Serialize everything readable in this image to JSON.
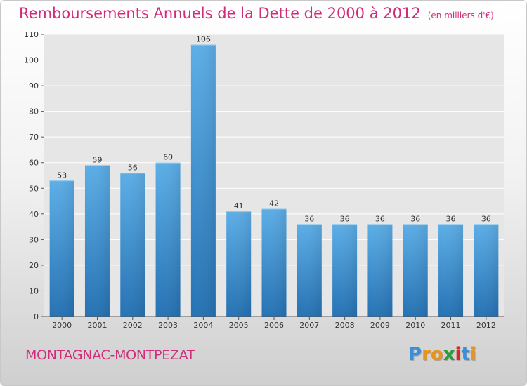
{
  "chart_data": {
    "type": "bar",
    "title": "Remboursements Annuels de la Dette de 2000 à 2012",
    "unit": "(en milliers d'€)",
    "categories": [
      "2000",
      "2001",
      "2002",
      "2003",
      "2004",
      "2005",
      "2006",
      "2007",
      "2008",
      "2009",
      "2010",
      "2011",
      "2012"
    ],
    "values": [
      53,
      59,
      56,
      60,
      106,
      41,
      42,
      36,
      36,
      36,
      36,
      36,
      36
    ],
    "xlabel": "",
    "ylabel": "",
    "ylim": [
      0,
      110
    ],
    "yticks": [
      0,
      10,
      20,
      30,
      40,
      50,
      60,
      70,
      80,
      90,
      100,
      110
    ],
    "grid": true,
    "colors": {
      "bar_top": "#5caee7",
      "bar_bottom": "#2572b4",
      "title": "#d12b7a",
      "grid": "#ffffff",
      "plot_bg": "#e6e6e6"
    }
  },
  "footer": {
    "commune": "MONTAGNAC-MONTPEZAT",
    "brand_letters": [
      "P",
      "r",
      "o",
      "x",
      "i",
      "t",
      "i"
    ],
    "brand_colors": [
      "#3b8fd8",
      "#e8931c",
      "#e8931c",
      "#2a9d3a",
      "#d8262c",
      "#3b8fd8",
      "#e8931c"
    ]
  }
}
